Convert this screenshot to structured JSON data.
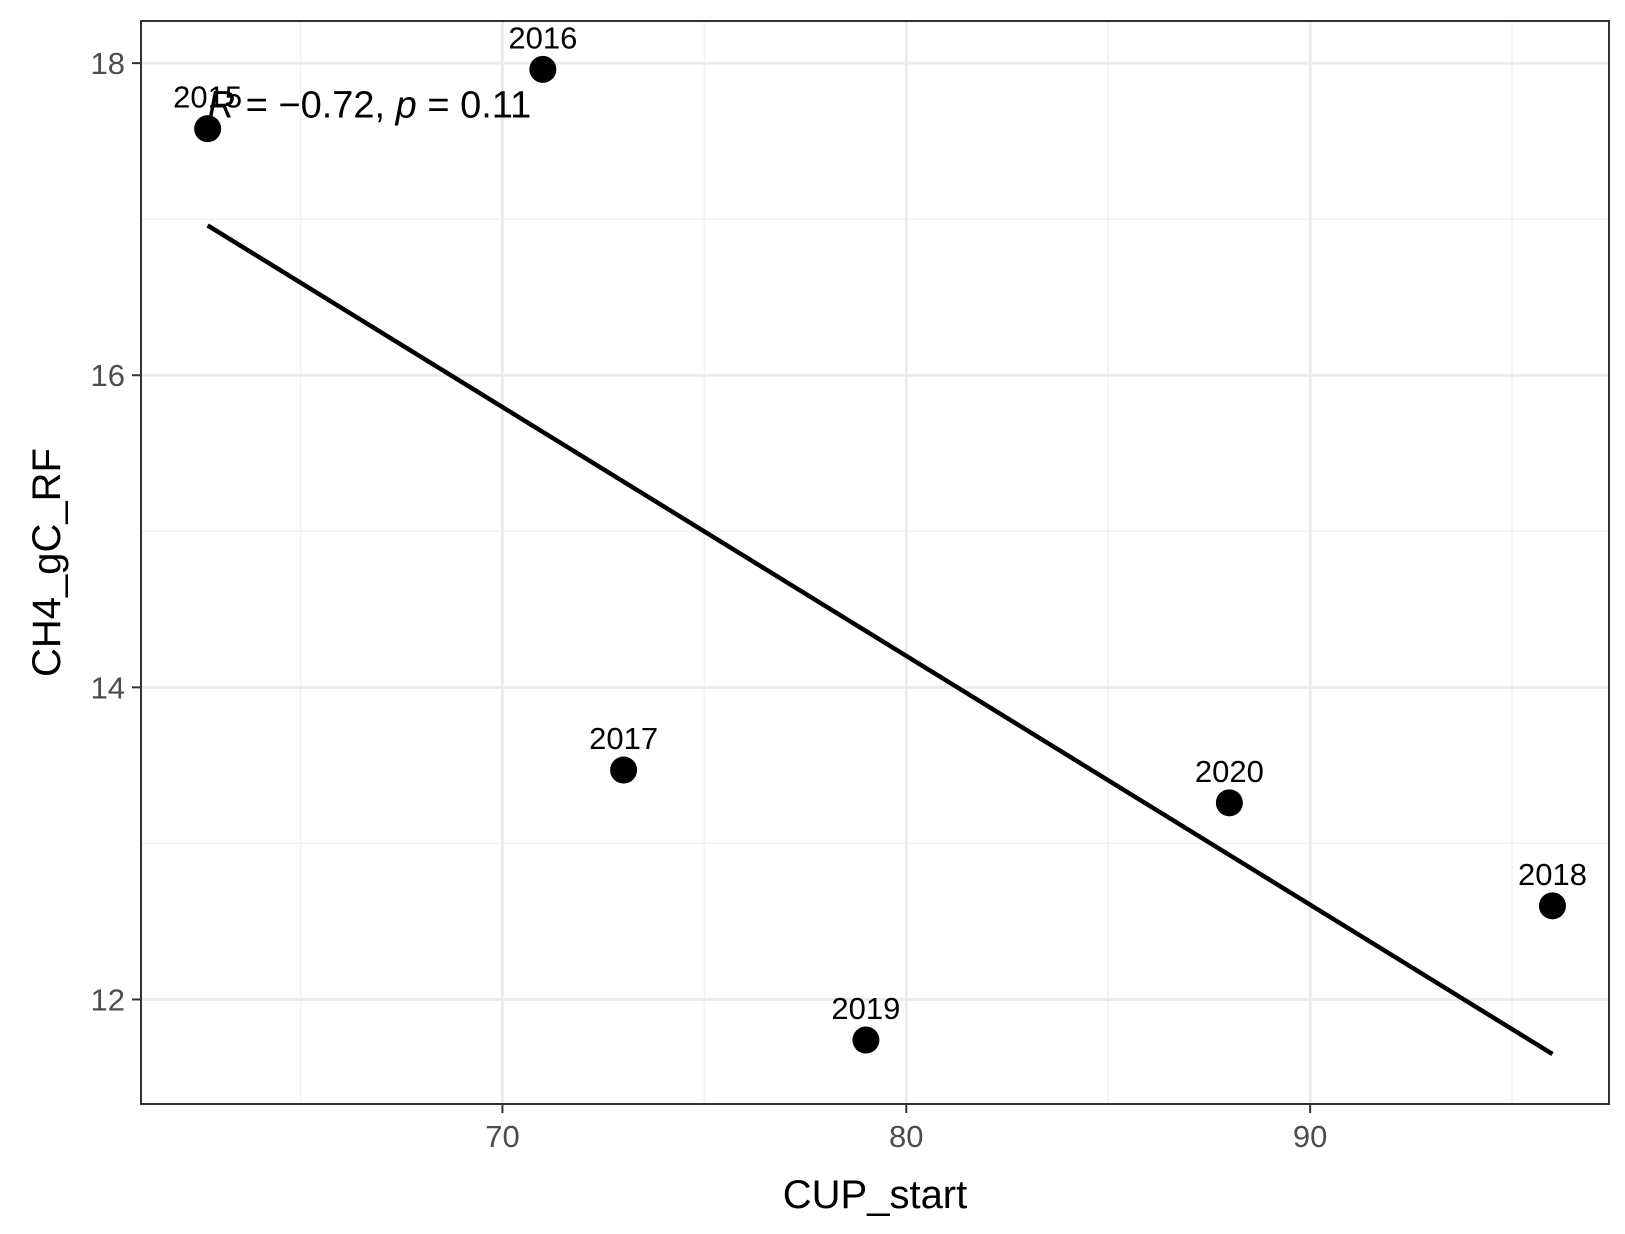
{
  "chart_data": {
    "type": "scatter",
    "title": "",
    "xlabel": "CUP_start",
    "ylabel": "CH4_gC_RF",
    "xlim": [
      61.05,
      97.4
    ],
    "ylim": [
      11.33,
      18.27
    ],
    "x_ticks": [
      70,
      80,
      90
    ],
    "y_ticks": [
      12,
      14,
      16,
      18
    ],
    "grid": true,
    "legend": "none",
    "points": [
      {
        "label": "2015",
        "x": 62.7,
        "y": 17.58
      },
      {
        "label": "2016",
        "x": 71.0,
        "y": 17.96
      },
      {
        "label": "2017",
        "x": 73.0,
        "y": 13.47
      },
      {
        "label": "2018",
        "x": 96.0,
        "y": 12.6
      },
      {
        "label": "2019",
        "x": 79.0,
        "y": 11.74
      },
      {
        "label": "2020",
        "x": 88.0,
        "y": 13.26
      }
    ],
    "fit_line": {
      "x": [
        62.7,
        96.0
      ],
      "y": [
        16.96,
        11.65
      ]
    },
    "annotation": {
      "r_symbol": "R",
      "r_text": " = −0.72, ",
      "p_symbol": "p",
      "p_text": " = 0.11",
      "x": 62.7,
      "y": 17.6
    },
    "colors": {
      "points": "#000000",
      "line": "#000000",
      "grid_major": "#ebebeb",
      "grid_minor": "#f2f2f2",
      "panel_border": "#333333"
    }
  }
}
